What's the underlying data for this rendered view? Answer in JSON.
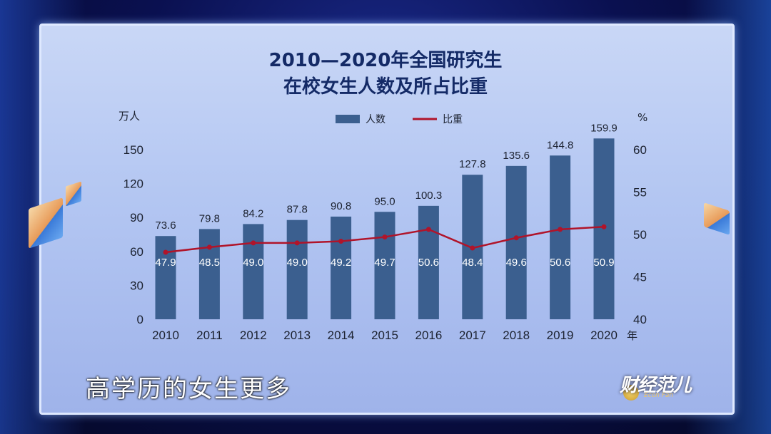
{
  "caption": "高学历的女生更多",
  "logo": {
    "text": "财经范儿",
    "sub": "Econ Fan"
  },
  "chart_data": {
    "type": "bar",
    "title_line1": "2010—2020年全国研究生",
    "title_line2": "在校女生人数及所占比重",
    "y_left_unit": "万人",
    "y_right_unit": "%",
    "x_unit": "年",
    "categories": [
      "2010",
      "2011",
      "2012",
      "2013",
      "2014",
      "2015",
      "2016",
      "2017",
      "2018",
      "2019",
      "2020"
    ],
    "series": [
      {
        "name": "人数",
        "type": "bar",
        "color": "#3b5f8f",
        "values": [
          73.6,
          79.8,
          84.2,
          87.8,
          90.8,
          95.0,
          100.3,
          127.8,
          135.6,
          144.8,
          159.9
        ]
      },
      {
        "name": "比重",
        "type": "line",
        "color": "#b0142a",
        "values": [
          47.9,
          48.5,
          49.0,
          49.0,
          49.2,
          49.7,
          50.6,
          48.4,
          49.6,
          50.6,
          50.9
        ]
      }
    ],
    "value_labels": [
      "73.6",
      "79.8",
      "84.2",
      "87.8",
      "90.8",
      "95.0",
      "100.3",
      "127.8",
      "135.6",
      "144.8",
      "159.9"
    ],
    "pct_labels": [
      "47.9",
      "48.5",
      "49.0",
      "49.0",
      "49.2",
      "49.7",
      "50.6",
      "48.4",
      "49.6",
      "50.6",
      "50.9"
    ],
    "y_left_ticks": [
      "0",
      "30",
      "60",
      "90",
      "120",
      "150"
    ],
    "y_right_ticks": [
      "40",
      "45",
      "50",
      "55",
      "60"
    ],
    "ylim_left": [
      0,
      150
    ],
    "ylim_right": [
      40,
      60
    ],
    "legend_position": "top-center",
    "grid": false
  }
}
